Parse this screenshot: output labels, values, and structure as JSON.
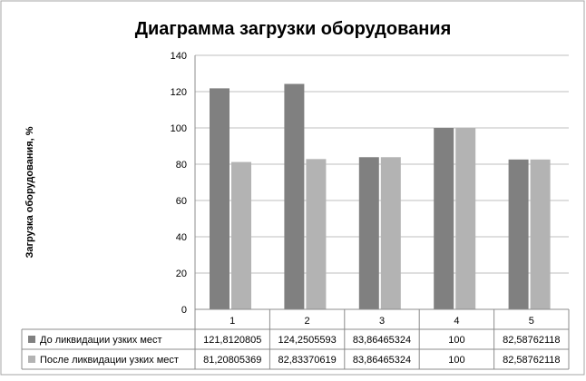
{
  "chart_data": {
    "type": "bar",
    "title": "Диаграмма загрузки оборудования",
    "xlabel": "",
    "ylabel": "Загрузка оборудования, %",
    "ylim": [
      0,
      140
    ],
    "yticks": [
      "0",
      "20",
      "40",
      "60",
      "80",
      "100",
      "120",
      "140"
    ],
    "categories": [
      "1",
      "2",
      "3",
      "4",
      "5"
    ],
    "grid": true,
    "legend": "data-table",
    "series": [
      {
        "name": "До ликвидации узких мест",
        "color": "#808080",
        "values": [
          121.8120805,
          124.2505593,
          83.86465324,
          100,
          82.58762118
        ],
        "labels": [
          "121,8120805",
          "124,2505593",
          "83,86465324",
          "100",
          "82,58762118"
        ]
      },
      {
        "name": "После ликвидации узких мест",
        "color": "#b3b3b3",
        "values": [
          81.20805369,
          82.83370619,
          83.86465324,
          100,
          82.58762118
        ],
        "labels": [
          "81,20805369",
          "82,83370619",
          "83,86465324",
          "100",
          "82,58762118"
        ]
      }
    ]
  }
}
